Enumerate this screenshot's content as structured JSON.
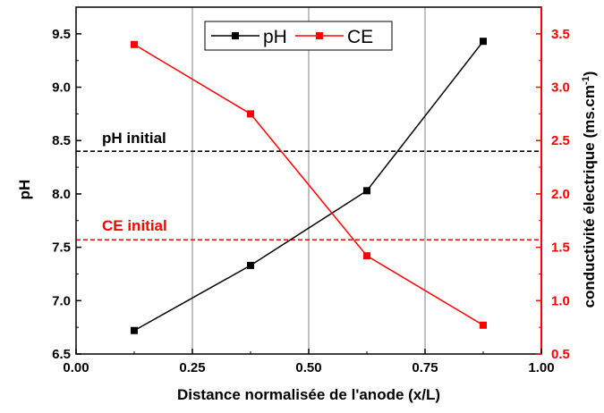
{
  "chart_data": {
    "type": "line",
    "xlabel": "Distance normalisée de l'anode (x/L)",
    "ylabel_left": "pH",
    "ylabel_right_main": "conductivité électrique (ms.cm",
    "ylabel_right_sup": "-1",
    "ylabel_right_end": ")",
    "xlim": [
      0.0,
      1.0
    ],
    "ylim_left": [
      6.5,
      9.75
    ],
    "ylim_right": [
      0.5,
      3.75
    ],
    "x_ticks": [
      "0.00",
      "0.25",
      "0.50",
      "0.75",
      "1.00"
    ],
    "y_left_ticks": [
      "6.5",
      "7.0",
      "7.5",
      "8.0",
      "8.5",
      "9.0",
      "9.5"
    ],
    "y_right_ticks": [
      "0.5",
      "1.0",
      "1.5",
      "2.0",
      "2.5",
      "3.0",
      "3.5"
    ],
    "vertical_gridlines_at": [
      0.25,
      0.5,
      0.75
    ],
    "legend_position": "top-center",
    "series": [
      {
        "name": "pH",
        "axis": "left",
        "color": "#000000",
        "x": [
          0.125,
          0.375,
          0.625,
          0.875
        ],
        "values": [
          6.72,
          7.33,
          8.03,
          9.43
        ]
      },
      {
        "name": "CE",
        "axis": "right",
        "color": "#ff0000",
        "x": [
          0.125,
          0.375,
          0.625,
          0.875
        ],
        "values": [
          3.4,
          2.75,
          1.42,
          0.77
        ]
      }
    ],
    "reference_lines": [
      {
        "label": "pH initial",
        "axis": "left",
        "value": 8.4,
        "color": "#000000",
        "style": "dashed"
      },
      {
        "label": "CE initial",
        "axis": "right",
        "value": 1.57,
        "color": "#ff0000",
        "style": "dashed"
      }
    ]
  }
}
